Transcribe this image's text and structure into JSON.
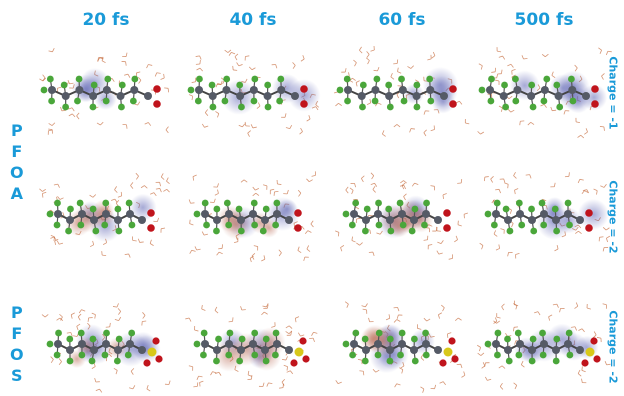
{
  "time_headers": [
    "20 fs",
    "40 fs",
    "60 fs",
    "500 fs"
  ],
  "molecules": [
    {
      "letters": [
        "P",
        "F",
        "O",
        "A"
      ]
    },
    {
      "letters": [
        "P",
        "F",
        "O",
        "S"
      ]
    }
  ],
  "row_charges": [
    "Charge = -1",
    "Charge = -2",
    "Charge = -2"
  ],
  "colors": {
    "text": "#1a9ad8",
    "carbon": "#555a66",
    "fluorine": "#4aa63a",
    "oxygen": "#c0141c",
    "sulfur": "#d8c81a",
    "water_o": "#c56a3a",
    "density_positive": "#5d63b3",
    "density_negative": "#b96b56"
  }
}
